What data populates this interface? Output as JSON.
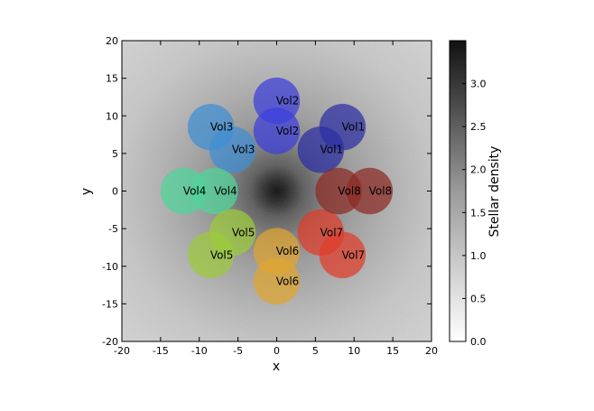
{
  "chart_data": {
    "type": "scatter",
    "title": "",
    "xlabel": "x",
    "ylabel": "y",
    "xlim": [
      -20,
      20
    ],
    "ylim": [
      -20,
      20
    ],
    "xticks": [
      "-20",
      "-15",
      "-10",
      "-5",
      "0",
      "5",
      "10",
      "15",
      "20"
    ],
    "yticks": [
      "-20",
      "-15",
      "-10",
      "-5",
      "0",
      "5",
      "10",
      "15",
      "20"
    ],
    "background": "grayscale stellar density map, darkest at center",
    "colorbar": {
      "label": "Stellar density",
      "range": [
        0.0,
        3.5
      ],
      "ticks": [
        "0.0",
        "0.5",
        "1.0",
        "1.5",
        "2.0",
        "2.5",
        "3.0"
      ],
      "colormap": "gray_r"
    },
    "volume_radius": 3,
    "points": [
      {
        "label": "Vol1",
        "x": 8.5,
        "y": 8.5,
        "color": "#2b2ea3"
      },
      {
        "label": "Vol1",
        "x": 5.7,
        "y": 5.5,
        "color": "#2b2ea3"
      },
      {
        "label": "Vol2",
        "x": 0.0,
        "y": 12.0,
        "color": "#3c3fdc"
      },
      {
        "label": "Vol2",
        "x": 0.0,
        "y": 8.0,
        "color": "#3c3fdc"
      },
      {
        "label": "Vol3",
        "x": -8.5,
        "y": 8.5,
        "color": "#3e8fd4"
      },
      {
        "label": "Vol3",
        "x": -5.7,
        "y": 5.5,
        "color": "#3e8fd4"
      },
      {
        "label": "Vol4",
        "x": -12.0,
        "y": 0.0,
        "color": "#4fd49a"
      },
      {
        "label": "Vol4",
        "x": -8.0,
        "y": 0.0,
        "color": "#4fd49a"
      },
      {
        "label": "Vol5",
        "x": -5.7,
        "y": -5.5,
        "color": "#9ccb3a"
      },
      {
        "label": "Vol5",
        "x": -8.5,
        "y": -8.5,
        "color": "#9ccb3a"
      },
      {
        "label": "Vol6",
        "x": 0.0,
        "y": -8.0,
        "color": "#e0a52f"
      },
      {
        "label": "Vol6",
        "x": 0.0,
        "y": -12.0,
        "color": "#e0a52f"
      },
      {
        "label": "Vol7",
        "x": 5.7,
        "y": -5.5,
        "color": "#e03b2a"
      },
      {
        "label": "Vol7",
        "x": 8.5,
        "y": -8.5,
        "color": "#e03b2a"
      },
      {
        "label": "Vol8",
        "x": 8.0,
        "y": 0.0,
        "color": "#8c2a24"
      },
      {
        "label": "Vol8",
        "x": 12.0,
        "y": 0.0,
        "color": "#8c2a24"
      }
    ]
  }
}
